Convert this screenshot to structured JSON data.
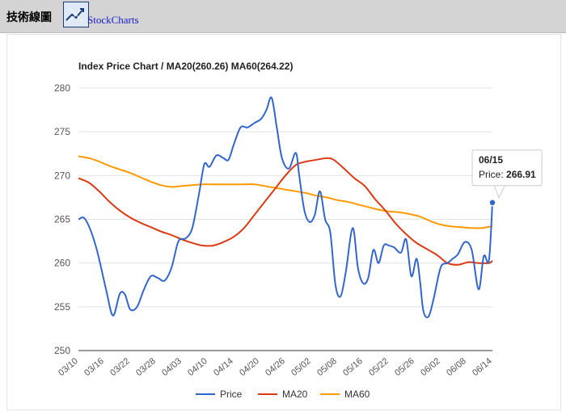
{
  "header": {
    "section_label": "技術線圖",
    "link_label": "StockCharts"
  },
  "colors": {
    "price": "#3366cc",
    "ma20": "#dc3912",
    "ma60": "#ff9900",
    "grid": "#e3e3e3",
    "topbar": "#d4d4d4"
  },
  "tooltip": {
    "date": "06/15",
    "label": "Price: ",
    "value": "266.91"
  },
  "chart_data": {
    "type": "line",
    "title": "Index Price Chart / MA20(260.26) MA60(264.22)",
    "xlabel": "",
    "ylabel": "",
    "ylim": [
      250,
      280
    ],
    "yticks": [
      "250",
      "255",
      "260",
      "265",
      "270",
      "275",
      "280"
    ],
    "xtick_labels": [
      "03/10",
      "03/16",
      "03/22",
      "03/28",
      "04/03",
      "04/10",
      "04/14",
      "04/20",
      "04/26",
      "05/02",
      "05/08",
      "05/16",
      "05/22",
      "05/26",
      "06/02",
      "06/08",
      "06/14"
    ],
    "grid": true,
    "legend_position": "bottom",
    "series": [
      {
        "name": "Price",
        "points": [
          [
            0,
            265.0
          ],
          [
            0.2,
            265.0
          ],
          [
            0.5,
            262.0
          ],
          [
            0.8,
            257.0
          ],
          [
            1.0,
            254.0
          ],
          [
            1.2,
            256.5
          ],
          [
            1.35,
            256.4
          ],
          [
            1.5,
            254.7
          ],
          [
            1.7,
            255.0
          ],
          [
            1.9,
            257.0
          ],
          [
            2.1,
            258.5
          ],
          [
            2.3,
            258.3
          ],
          [
            2.5,
            258.0
          ],
          [
            2.7,
            259.5
          ],
          [
            2.9,
            262.5
          ],
          [
            3.1,
            262.8
          ],
          [
            3.3,
            264.0
          ],
          [
            3.5,
            268.0
          ],
          [
            3.65,
            271.3
          ],
          [
            3.8,
            271.0
          ],
          [
            4.0,
            272.3
          ],
          [
            4.2,
            272.0
          ],
          [
            4.35,
            271.8
          ],
          [
            4.5,
            273.5
          ],
          [
            4.7,
            275.5
          ],
          [
            4.9,
            275.5
          ],
          [
            5.1,
            276.0
          ],
          [
            5.3,
            276.5
          ],
          [
            5.45,
            277.5
          ],
          [
            5.6,
            278.9
          ],
          [
            5.75,
            275.5
          ],
          [
            5.9,
            272.0
          ],
          [
            6.1,
            270.8
          ],
          [
            6.3,
            272.6
          ],
          [
            6.4,
            270.0
          ],
          [
            6.55,
            266.0
          ],
          [
            6.7,
            264.7
          ],
          [
            6.85,
            265.5
          ],
          [
            7.0,
            268.2
          ],
          [
            7.15,
            265.0
          ],
          [
            7.3,
            263.5
          ],
          [
            7.45,
            257.5
          ],
          [
            7.6,
            256.2
          ],
          [
            7.75,
            259.0
          ],
          [
            7.95,
            264.0
          ],
          [
            8.1,
            259.5
          ],
          [
            8.25,
            257.7
          ],
          [
            8.4,
            258.3
          ],
          [
            8.55,
            261.5
          ],
          [
            8.7,
            260.0
          ],
          [
            8.85,
            262.0
          ],
          [
            9.0,
            262.0
          ],
          [
            9.15,
            261.8
          ],
          [
            9.35,
            261.2
          ],
          [
            9.5,
            262.7
          ],
          [
            9.65,
            258.5
          ],
          [
            9.8,
            260.5
          ],
          [
            9.9,
            258.0
          ],
          [
            10.0,
            254.5
          ],
          [
            10.15,
            253.9
          ],
          [
            10.3,
            256.0
          ],
          [
            10.5,
            259.5
          ],
          [
            10.7,
            260.0
          ],
          [
            10.85,
            260.5
          ],
          [
            11.0,
            261.0
          ],
          [
            11.2,
            262.4
          ],
          [
            11.4,
            261.5
          ],
          [
            11.6,
            257.0
          ],
          [
            11.75,
            260.8
          ],
          [
            11.9,
            260.3
          ],
          [
            12.0,
            266.91
          ]
        ]
      },
      {
        "name": "MA20",
        "points": [
          [
            0,
            269.7
          ],
          [
            0.3,
            269.2
          ],
          [
            0.6,
            268.2
          ],
          [
            0.9,
            267.0
          ],
          [
            1.2,
            266.0
          ],
          [
            1.5,
            265.2
          ],
          [
            1.8,
            264.6
          ],
          [
            2.1,
            264.1
          ],
          [
            2.4,
            263.6
          ],
          [
            2.7,
            263.2
          ],
          [
            3.0,
            262.7
          ],
          [
            3.3,
            262.3
          ],
          [
            3.6,
            262.0
          ],
          [
            3.9,
            262.0
          ],
          [
            4.2,
            262.4
          ],
          [
            4.5,
            263.0
          ],
          [
            4.8,
            264.0
          ],
          [
            5.1,
            265.5
          ],
          [
            5.4,
            267.0
          ],
          [
            5.7,
            268.5
          ],
          [
            6.0,
            270.0
          ],
          [
            6.3,
            271.2
          ],
          [
            6.6,
            271.6
          ],
          [
            6.9,
            271.8
          ],
          [
            7.2,
            272.0
          ],
          [
            7.4,
            271.8
          ],
          [
            7.7,
            270.8
          ],
          [
            8.0,
            269.7
          ],
          [
            8.3,
            268.8
          ],
          [
            8.6,
            267.3
          ],
          [
            8.9,
            266.0
          ],
          [
            9.2,
            264.5
          ],
          [
            9.5,
            263.3
          ],
          [
            9.8,
            262.3
          ],
          [
            10.1,
            261.6
          ],
          [
            10.4,
            260.9
          ],
          [
            10.7,
            260.0
          ],
          [
            11.0,
            259.8
          ],
          [
            11.3,
            260.1
          ],
          [
            11.6,
            260.0
          ],
          [
            11.9,
            260.0
          ],
          [
            12.0,
            260.26
          ]
        ]
      },
      {
        "name": "MA60",
        "points": [
          [
            0,
            272.2
          ],
          [
            0.3,
            272.0
          ],
          [
            0.6,
            271.6
          ],
          [
            0.9,
            271.1
          ],
          [
            1.2,
            270.7
          ],
          [
            1.5,
            270.3
          ],
          [
            1.8,
            269.8
          ],
          [
            2.1,
            269.3
          ],
          [
            2.4,
            268.9
          ],
          [
            2.7,
            268.7
          ],
          [
            3.0,
            268.8
          ],
          [
            3.3,
            268.9
          ],
          [
            3.6,
            269.0
          ],
          [
            3.9,
            269.0
          ],
          [
            4.2,
            269.0
          ],
          [
            4.5,
            269.0
          ],
          [
            4.8,
            269.0
          ],
          [
            5.1,
            269.0
          ],
          [
            5.4,
            268.8
          ],
          [
            5.7,
            268.6
          ],
          [
            6.0,
            268.4
          ],
          [
            6.3,
            268.2
          ],
          [
            6.6,
            268.0
          ],
          [
            6.9,
            267.7
          ],
          [
            7.2,
            267.5
          ],
          [
            7.5,
            267.2
          ],
          [
            7.8,
            267.0
          ],
          [
            8.1,
            266.7
          ],
          [
            8.4,
            266.4
          ],
          [
            8.7,
            266.1
          ],
          [
            9.0,
            265.9
          ],
          [
            9.3,
            265.8
          ],
          [
            9.6,
            265.6
          ],
          [
            9.9,
            265.3
          ],
          [
            10.2,
            264.8
          ],
          [
            10.5,
            264.4
          ],
          [
            10.8,
            264.2
          ],
          [
            11.1,
            264.1
          ],
          [
            11.4,
            264.0
          ],
          [
            11.7,
            264.0
          ],
          [
            12.0,
            264.22
          ]
        ]
      }
    ]
  }
}
